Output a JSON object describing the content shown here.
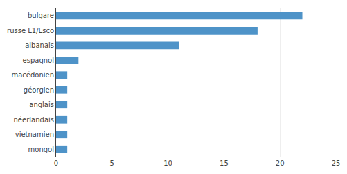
{
  "chart_data": {
    "type": "bar",
    "orientation": "horizontal",
    "categories": [
      "mongol",
      "vietnamien",
      "néerlandais",
      "anglais",
      "géorgien",
      "macédonien",
      "espagnol",
      "albanais",
      "russe L1/Lsco",
      "bulgare"
    ],
    "values": [
      1,
      1,
      1,
      1,
      1,
      1,
      2,
      11,
      18,
      22
    ],
    "color": "#4E93C8",
    "xlim": [
      0,
      25
    ],
    "xticks": [
      0,
      5,
      10,
      15,
      20,
      25
    ],
    "grid": true
  }
}
